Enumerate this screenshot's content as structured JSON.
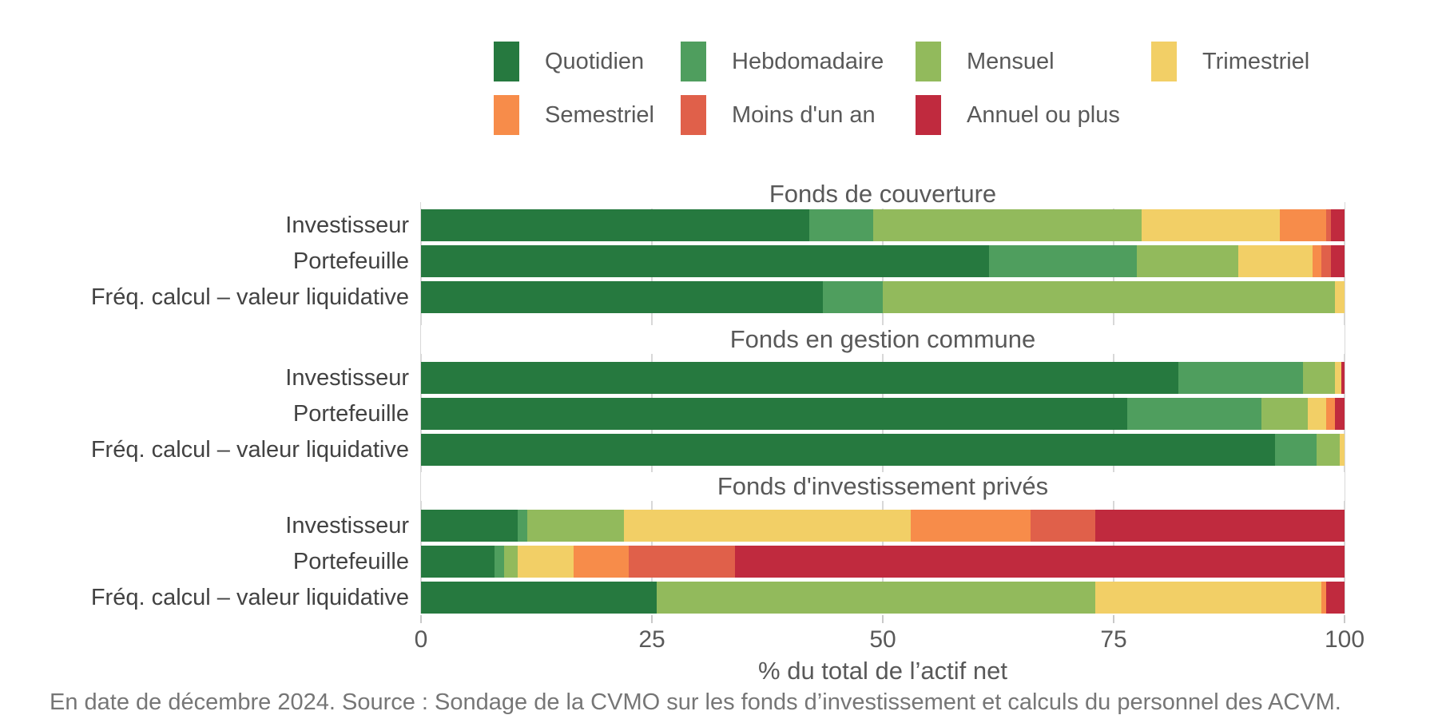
{
  "legend": {
    "items": [
      {
        "label": "Quotidien",
        "key": "quotidien",
        "color": "#26793f"
      },
      {
        "label": "Hebdomadaire",
        "key": "hebdomadaire",
        "color": "#4f9e5e"
      },
      {
        "label": "Mensuel",
        "key": "mensuel",
        "color": "#92ba5c"
      },
      {
        "label": "Trimestriel",
        "key": "trimestriel",
        "color": "#f2cf66"
      },
      {
        "label": "Semestriel",
        "key": "semestriel",
        "color": "#f78c4a"
      },
      {
        "label": "Moins d'un an",
        "key": "moins-d-un-an",
        "color": "#e0604a"
      },
      {
        "label": "Annuel ou plus",
        "key": "annuel-ou-plus",
        "color": "#c02a3e"
      }
    ]
  },
  "chart_data": {
    "type": "bar",
    "orientation": "horizontal",
    "stacked": true,
    "unit": "percent of total net assets",
    "xlim": [
      0,
      100
    ],
    "x_ticks": [
      "0",
      "25",
      "50",
      "75",
      "100"
    ],
    "x_tick_values": [
      0,
      25,
      50,
      75,
      100
    ],
    "xlabel": "% du total de l’actif net",
    "grid": "vertical-light-gray",
    "legend_position": "top",
    "categories": [
      "Quotidien",
      "Hebdomadaire",
      "Mensuel",
      "Trimestriel",
      "Semestriel",
      "Moins d'un an",
      "Annuel ou plus"
    ],
    "panels": [
      {
        "title": "Fonds de couverture",
        "rows": [
          {
            "label": "Investisseur",
            "values": [
              42,
              7,
              29,
              15,
              5,
              0.5,
              1.5
            ]
          },
          {
            "label": "Portefeuille",
            "values": [
              61.5,
              16,
              11,
              8,
              1,
              1,
              1.5
            ]
          },
          {
            "label": "Fréq. calcul – valeur liquidative",
            "values": [
              43.5,
              6.5,
              49,
              1,
              0,
              0,
              0
            ]
          }
        ]
      },
      {
        "title": "Fonds en gestion commune",
        "rows": [
          {
            "label": "Investisseur",
            "values": [
              82,
              13.5,
              3.5,
              0.7,
              0,
              0,
              0.3
            ]
          },
          {
            "label": "Portefeuille",
            "values": [
              76.5,
              14.5,
              5,
              2,
              1,
              0,
              1
            ]
          },
          {
            "label": "Fréq. calcul – valeur liquidative",
            "values": [
              92.5,
              4.5,
              2.5,
              0.5,
              0,
              0,
              0
            ]
          }
        ]
      },
      {
        "title": "Fonds d'investissement privés",
        "rows": [
          {
            "label": "Investisseur",
            "values": [
              10.5,
              1,
              10.5,
              31,
              13,
              7,
              27
            ]
          },
          {
            "label": "Portefeuille",
            "values": [
              8,
              1,
              1.5,
              6,
              6,
              11.5,
              66
            ]
          },
          {
            "label": "Fréq. calcul – valeur liquidative",
            "values": [
              25.5,
              0,
              47.5,
              24.5,
              0.5,
              0,
              2
            ]
          }
        ]
      }
    ]
  },
  "footer": {
    "text": "En date de décembre 2024. Source : Sondage de la CVMO sur les fonds d’investissement et calculs du personnel des ACVM."
  }
}
